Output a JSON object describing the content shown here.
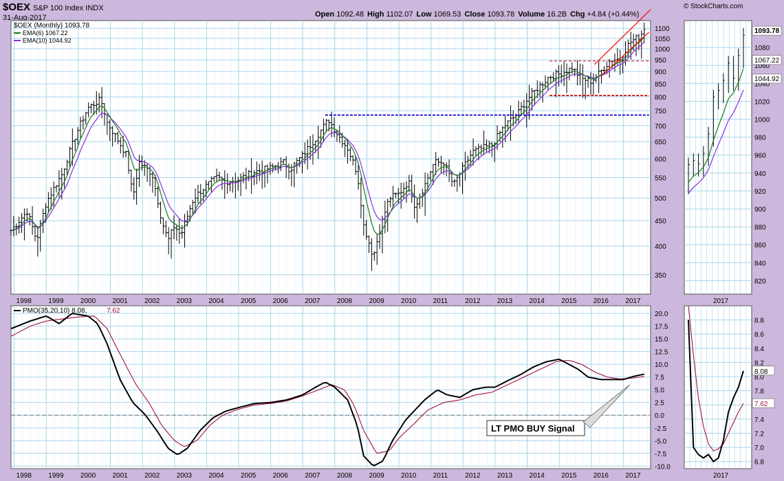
{
  "header": {
    "symbol": "$OEX",
    "name": "S&P 100 Index INDX",
    "date": "31-Aug-2017",
    "brand": "© StockCharts.com",
    "open_label": "Open",
    "open": "1092.48",
    "high_label": "High",
    "high": "1102.07",
    "low_label": "Low",
    "low": "1069.53",
    "close_label": "Close",
    "close": "1093.78",
    "volume_label": "Volume",
    "volume": "16.2B",
    "chg_label": "Chg",
    "chg": "+4.84 (+0.44%)"
  },
  "colors": {
    "background": "#ccb8dc",
    "panel": "#ffffff",
    "grid": "#a8d4ec",
    "price_bars": "#000000",
    "ema6": "#1a7a1a",
    "ema10": "#8a2be2",
    "pmo": "#000000",
    "pmo_signal": "#a01040",
    "resistance": "#0000cc",
    "channel": "#ff0000",
    "support": "#cc0000"
  },
  "chart_data": [
    {
      "type": "ohlc",
      "title": "$OEX (Monthly)",
      "y_scale": "log",
      "ylim": [
        320,
        1140
      ],
      "y_ticks": [
        "350",
        "400",
        "450",
        "500",
        "550",
        "600",
        "650",
        "700",
        "750",
        "800",
        "850",
        "900",
        "950",
        "1000",
        "1050",
        "1100"
      ],
      "x_tick_labels": [
        "1998",
        "1999",
        "2000",
        "2001",
        "2002",
        "2003",
        "2004",
        "2005",
        "2006",
        "2007",
        "2008",
        "2009",
        "2010",
        "2011",
        "2012",
        "2013",
        "2014",
        "2015",
        "2016",
        "2017"
      ],
      "xlim": [
        "1997-11",
        "2017-10"
      ],
      "legend": [
        {
          "text": "$OEX (Monthly) 1093.78",
          "series": "price"
        },
        {
          "text": "EMA(6) 1067.22",
          "series": "ema6"
        },
        {
          "text": "EMA(10) 1044.92",
          "series": "ema10"
        }
      ],
      "price_path": [
        [
          "1997.9",
          430
        ],
        [
          "1998.4",
          470
        ],
        [
          "1998.7",
          410
        ],
        [
          "1999.0",
          490
        ],
        [
          "1999.5",
          560
        ],
        [
          "2000.0",
          690
        ],
        [
          "2000.3",
          760
        ],
        [
          "2000.7",
          790
        ],
        [
          "2000.9",
          710
        ],
        [
          "2001.2",
          660
        ],
        [
          "2001.5",
          610
        ],
        [
          "2001.7",
          500
        ],
        [
          "2001.9",
          590
        ],
        [
          "2002.3",
          560
        ],
        [
          "2002.6",
          450
        ],
        [
          "2002.8",
          410
        ],
        [
          "2003.0",
          440
        ],
        [
          "2003.2",
          420
        ],
        [
          "2003.6",
          500
        ],
        [
          "2004.0",
          530
        ],
        [
          "2004.3",
          550
        ],
        [
          "2004.6",
          540
        ],
        [
          "2005.0",
          545
        ],
        [
          "2005.5",
          565
        ],
        [
          "2006.0",
          575
        ],
        [
          "2006.4",
          590
        ],
        [
          "2006.6",
          570
        ],
        [
          "2007.0",
          610
        ],
        [
          "2007.4",
          660
        ],
        [
          "2007.8",
          720
        ],
        [
          "2008.1",
          670
        ],
        [
          "2008.4",
          630
        ],
        [
          "2008.7",
          560
        ],
        [
          "2008.9",
          440
        ],
        [
          "2009.2",
          380
        ],
        [
          "2009.4",
          430
        ],
        [
          "2009.7",
          500
        ],
        [
          "2010.0",
          510
        ],
        [
          "2010.3",
          540
        ],
        [
          "2010.5",
          480
        ],
        [
          "2010.8",
          530
        ],
        [
          "2011.1",
          590
        ],
        [
          "2011.4",
          590
        ],
        [
          "2011.7",
          530
        ],
        [
          "2011.9",
          560
        ],
        [
          "2012.3",
          620
        ],
        [
          "2012.6",
          630
        ],
        [
          "2012.9",
          640
        ],
        [
          "2013.3",
          700
        ],
        [
          "2013.7",
          740
        ],
        [
          "2014.0",
          790
        ],
        [
          "2014.3",
          830
        ],
        [
          "2014.7",
          880
        ],
        [
          "2015.0",
          890
        ],
        [
          "2015.4",
          915
        ],
        [
          "2015.7",
          870
        ],
        [
          "2016.0",
          860
        ],
        [
          "2016.3",
          900
        ],
        [
          "2016.6",
          950
        ],
        [
          "2016.9",
          955
        ],
        [
          "2017.2",
          1030
        ],
        [
          "2017.5",
          1060
        ],
        [
          "2017.66",
          1093.78
        ]
      ],
      "ema6_last": 1067.22,
      "ema10_last": 1044.92,
      "last_close": 1093.78,
      "resistance_line": {
        "from": "2007.7",
        "to": "2017.8",
        "value": 735
      },
      "support_line": {
        "from": "2014.7",
        "to": "2017.8",
        "value": 805
      },
      "dashed_top_line": {
        "from": "2014.7",
        "to": "2017.8",
        "value": 945
      },
      "channel": {
        "upper": [
          [
            "2016.1",
            930
          ],
          [
            "2017.85",
            1200
          ]
        ],
        "lower": [
          [
            "2016.3",
            880
          ],
          [
            "2017.8",
            1080
          ]
        ]
      }
    },
    {
      "type": "ohlc",
      "title": "zoom 2017",
      "y_scale": "linear",
      "ylim": [
        805,
        1110
      ],
      "y_ticks": [
        "820",
        "840",
        "860",
        "880",
        "900",
        "920",
        "940",
        "960",
        "980",
        "1000",
        "1020",
        "1040",
        "1060",
        "1080"
      ],
      "x_tick_labels": [
        "2017"
      ],
      "callouts": [
        "1093.78",
        "1067.22",
        "1044.92"
      ]
    },
    {
      "type": "line",
      "title": "PMO(35,20,10)",
      "legend": [
        {
          "text": "PMO(35,20,10) 8.08",
          "series": "pmo"
        },
        {
          "text": "7.62",
          "series": "signal"
        }
      ],
      "ylim": [
        -10.5,
        21.5
      ],
      "y_ticks": [
        "-10.0",
        "-7.5",
        "-5.0",
        "-2.5",
        "0.0",
        "2.5",
        "5.0",
        "7.5",
        "10.0",
        "12.5",
        "15.0",
        "17.5",
        "20.0"
      ],
      "zero_line": 0,
      "pmo_path": [
        [
          "1997.9",
          17
        ],
        [
          "1998.5",
          18.5
        ],
        [
          "1999.0",
          19.5
        ],
        [
          "1999.4",
          18
        ],
        [
          "1999.8",
          20
        ],
        [
          "2000.3",
          19.5
        ],
        [
          "2000.6",
          18
        ],
        [
          "2000.9",
          14
        ],
        [
          "2001.3",
          7
        ],
        [
          "2001.7",
          2.5
        ],
        [
          "2002.1",
          0
        ],
        [
          "2002.5",
          -3.5
        ],
        [
          "2002.8",
          -6.5
        ],
        [
          "2003.1",
          -7.8
        ],
        [
          "2003.4",
          -6.5
        ],
        [
          "2003.8",
          -3
        ],
        [
          "2004.2",
          -0.5
        ],
        [
          "2004.6",
          0.8
        ],
        [
          "2005.0",
          1.5
        ],
        [
          "2005.5",
          2.3
        ],
        [
          "2006.0",
          2.5
        ],
        [
          "2006.5",
          3
        ],
        [
          "2007.0",
          4
        ],
        [
          "2007.4",
          5.5
        ],
        [
          "2007.7",
          6.5
        ],
        [
          "2008.0",
          5.5
        ],
        [
          "2008.4",
          3
        ],
        [
          "2008.7",
          -2
        ],
        [
          "2008.9",
          -8
        ],
        [
          "2009.2",
          -10
        ],
        [
          "2009.5",
          -9
        ],
        [
          "2009.8",
          -5
        ],
        [
          "2010.2",
          -1
        ],
        [
          "2010.5",
          1
        ],
        [
          "2010.8",
          3
        ],
        [
          "2011.2",
          5
        ],
        [
          "2011.5",
          4
        ],
        [
          "2011.9",
          3.5
        ],
        [
          "2012.3",
          5
        ],
        [
          "2012.7",
          5.5
        ],
        [
          "2013.0",
          5.5
        ],
        [
          "2013.4",
          6.8
        ],
        [
          "2013.8",
          8
        ],
        [
          "2014.2",
          9.5
        ],
        [
          "2014.6",
          10.5
        ],
        [
          "2015.0",
          11
        ],
        [
          "2015.3",
          10
        ],
        [
          "2015.6",
          9
        ],
        [
          "2015.9",
          7.5
        ],
        [
          "2016.3",
          7
        ],
        [
          "2016.7",
          7
        ],
        [
          "2017.0",
          7
        ],
        [
          "2017.3",
          7.6
        ],
        [
          "2017.66",
          8.08
        ]
      ],
      "signal_path": [
        [
          "1997.9",
          15.5
        ],
        [
          "1998.5",
          17.5
        ],
        [
          "1999.0",
          18.5
        ],
        [
          "1999.6",
          19
        ],
        [
          "2000.0",
          19.3
        ],
        [
          "2000.5",
          19.5
        ],
        [
          "2000.9",
          17
        ],
        [
          "2001.3",
          12
        ],
        [
          "2001.8",
          6
        ],
        [
          "2002.2",
          2.5
        ],
        [
          "2002.6",
          -2
        ],
        [
          "2003.0",
          -5
        ],
        [
          "2003.3",
          -6.2
        ],
        [
          "2003.7",
          -5
        ],
        [
          "2004.1",
          -2
        ],
        [
          "2004.5",
          0
        ],
        [
          "2005.0",
          1.2
        ],
        [
          "2005.5",
          2
        ],
        [
          "2006.0",
          2.3
        ],
        [
          "2006.5",
          2.8
        ],
        [
          "2007.0",
          3.8
        ],
        [
          "2007.5",
          5
        ],
        [
          "2007.9",
          6
        ],
        [
          "2008.3",
          5
        ],
        [
          "2008.6",
          2
        ],
        [
          "2008.9",
          -3
        ],
        [
          "2009.3",
          -7.5
        ],
        [
          "2009.7",
          -7
        ],
        [
          "2010.0",
          -4.5
        ],
        [
          "2010.5",
          -1.5
        ],
        [
          "2010.9",
          1
        ],
        [
          "2011.4",
          2.5
        ],
        [
          "2011.9",
          3
        ],
        [
          "2012.4",
          4
        ],
        [
          "2012.9",
          4.5
        ],
        [
          "2013.4",
          6
        ],
        [
          "2013.9",
          7.5
        ],
        [
          "2014.4",
          9
        ],
        [
          "2014.9",
          10.5
        ],
        [
          "2015.3",
          10.8
        ],
        [
          "2015.7",
          10
        ],
        [
          "2016.1",
          8.5
        ],
        [
          "2016.5",
          7.5
        ],
        [
          "2016.9",
          7.1
        ],
        [
          "2017.3",
          7.3
        ],
        [
          "2017.66",
          7.62
        ]
      ],
      "annotation": "LT PMO BUY Signal",
      "x_tick_labels": [
        "1998",
        "1999",
        "2000",
        "2001",
        "2002",
        "2003",
        "2004",
        "2005",
        "2006",
        "2007",
        "2008",
        "2009",
        "2010",
        "2011",
        "2012",
        "2013",
        "2014",
        "2015",
        "2016",
        "2017"
      ]
    },
    {
      "type": "line",
      "title": "PMO zoom 2017",
      "ylim": [
        6.7,
        9.0
      ],
      "y_ticks": [
        "6.8",
        "7.0",
        "7.2",
        "7.4",
        "7.6",
        "7.8",
        "8.0",
        "8.2",
        "8.4",
        "8.6",
        "8.8"
      ],
      "callouts": [
        "8.08",
        "7.62"
      ],
      "x_tick_labels": [
        "2017"
      ]
    }
  ]
}
